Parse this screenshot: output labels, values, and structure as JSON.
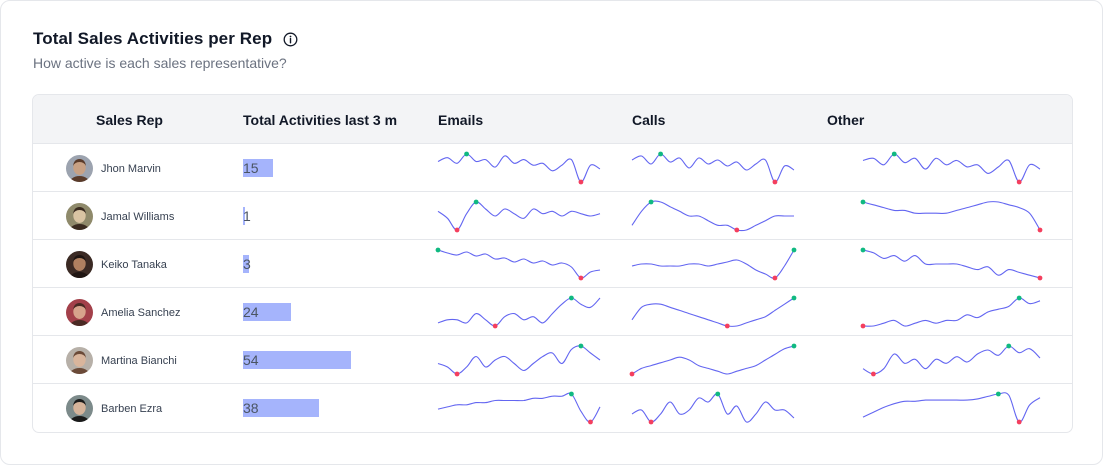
{
  "header": {
    "title": "Total Sales Activities per Rep",
    "subtitle": "How active is each sales representative?"
  },
  "columns": {
    "rep": "Sales Rep",
    "total": "Total Activities last 3 m",
    "emails": "Emails",
    "calls": "Calls",
    "other": "Other"
  },
  "colors": {
    "bar": "#a5b4fc",
    "line": "#6366f1",
    "max_dot": "#10b981",
    "min_dot": "#f43f5e"
  },
  "max_total": 54,
  "rows": [
    {
      "name": "Jhon Marvin",
      "total": "15",
      "total_value": 15,
      "avatar": {
        "skin": "#c8a184",
        "hair": "#5a3b2a",
        "bg": "#9ca3af"
      },
      "emails": [
        54,
        56,
        53,
        58,
        54,
        55,
        51,
        57,
        53,
        55,
        52,
        53,
        49,
        52,
        55,
        43,
        52,
        50
      ],
      "calls": [
        54,
        56,
        52,
        57,
        53,
        55,
        50,
        55,
        52,
        54,
        51,
        53,
        49,
        52,
        54,
        43,
        51,
        49
      ],
      "other": [
        54,
        55,
        52,
        57,
        53,
        55,
        50,
        55,
        52,
        54,
        51,
        52,
        48,
        51,
        54,
        44,
        52,
        50
      ]
    },
    {
      "name": "Jamal Williams",
      "total": "1",
      "total_value": 1,
      "avatar": {
        "skin": "#d9c4a3",
        "hair": "#3a2b20",
        "bg": "#8f8a6b"
      },
      "emails": [
        52,
        49,
        44,
        51,
        56,
        53,
        50,
        53,
        51,
        49,
        53,
        51,
        52,
        50,
        52,
        51,
        50,
        51
      ],
      "calls": [
        50,
        53,
        55,
        55,
        54,
        53,
        52,
        52,
        51,
        50,
        50,
        49,
        49,
        50,
        51,
        52,
        52,
        52
      ],
      "other": [
        55,
        54,
        53,
        52,
        52,
        51,
        51,
        51,
        51,
        52,
        53,
        54,
        55,
        55,
        54,
        53,
        51,
        45
      ]
    },
    {
      "name": "Keiko Tanaka",
      "total": "3",
      "total_value": 3,
      "avatar": {
        "skin": "#b08060",
        "hair": "#1f1512",
        "bg": "#3b2a24"
      },
      "emails": [
        58,
        55,
        53,
        56,
        52,
        54,
        49,
        50,
        46,
        49,
        45,
        47,
        43,
        45,
        41,
        30,
        36,
        38
      ],
      "calls": [
        50,
        51,
        51,
        50,
        50,
        50,
        51,
        51,
        50,
        51,
        52,
        53,
        51,
        48,
        46,
        44,
        50,
        58
      ],
      "other": [
        54,
        53,
        51,
        52,
        50,
        52,
        49,
        49,
        49,
        49,
        48,
        47,
        48,
        45,
        47,
        46,
        45,
        44
      ]
    },
    {
      "name": "Amelia Sanchez",
      "total": "24",
      "total_value": 24,
      "avatar": {
        "skin": "#d7a38c",
        "hair": "#4a2a24",
        "bg": "#a3404a"
      },
      "emails": [
        50,
        51,
        51,
        50,
        53,
        51,
        49,
        52,
        53,
        51,
        52,
        50,
        53,
        56,
        58,
        56,
        55,
        58
      ],
      "calls": [
        43,
        47,
        48,
        48,
        47,
        46,
        45,
        44,
        43,
        42,
        41,
        41,
        42,
        43,
        44,
        46,
        48,
        50
      ],
      "other": [
        45,
        45,
        46,
        47,
        45,
        46,
        47,
        46,
        47,
        47,
        49,
        48,
        50,
        51,
        52,
        55,
        53,
        54
      ]
    },
    {
      "name": "Martina Bianchi",
      "total": "54",
      "total_value": 54,
      "avatar": {
        "skin": "#d9b59c",
        "hair": "#6b4a38",
        "bg": "#b7b0a8"
      },
      "emails": [
        52,
        51,
        49,
        51,
        54,
        51,
        53,
        54,
        52,
        50,
        52,
        54,
        55,
        52,
        56,
        57,
        55,
        53
      ],
      "calls": [
        45,
        47,
        48,
        49,
        50,
        51,
        50,
        48,
        47,
        46,
        45,
        46,
        47,
        48,
        50,
        52,
        54,
        55
      ],
      "other": [
        45,
        41,
        45,
        56,
        49,
        52,
        45,
        52,
        49,
        54,
        50,
        56,
        59,
        55,
        62,
        57,
        60,
        53
      ]
    },
    {
      "name": "Barben Ezra",
      "total": "38",
      "total_value": 38,
      "avatar": {
        "skin": "#d5b39a",
        "hair": "#1a1a1a",
        "bg": "#7c8a8a"
      },
      "emails": [
        43,
        44,
        45,
        45,
        46,
        46,
        47,
        47,
        47,
        47,
        48,
        48,
        49,
        49,
        50,
        42,
        37,
        44
      ],
      "calls": [
        52,
        53,
        50,
        52,
        55,
        52,
        53,
        56,
        55,
        57,
        52,
        54,
        50,
        52,
        55,
        53,
        53,
        51
      ],
      "other": [
        40,
        44,
        48,
        51,
        53,
        53,
        54,
        54,
        54,
        54,
        54,
        55,
        57,
        59,
        58,
        36,
        50,
        56
      ]
    }
  ]
}
